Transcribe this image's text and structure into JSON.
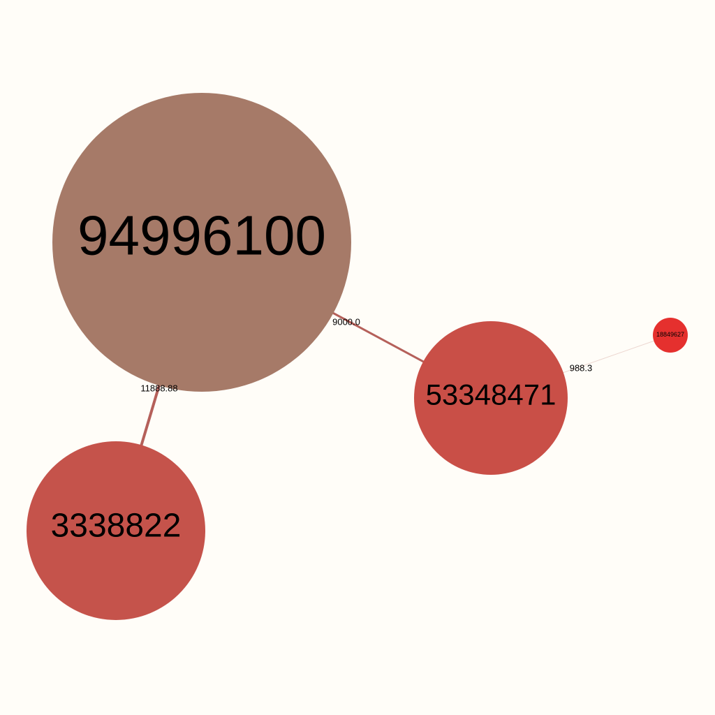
{
  "background_color": "#fffdf8",
  "nodes": [
    {
      "id": "n1",
      "label": "94996100",
      "color": "#a67a68"
    },
    {
      "id": "n2",
      "label": "53348471",
      "color": "#c94f47"
    },
    {
      "id": "n3",
      "label": "3338822",
      "color": "#c5534b"
    },
    {
      "id": "n4",
      "label": "18849627",
      "color": "#e5302e"
    }
  ],
  "edges": [
    {
      "from": "n1",
      "to": "n2",
      "label": "9000.0",
      "color": "#b5605a"
    },
    {
      "from": "n1",
      "to": "n3",
      "label": "11888.88",
      "color": "#b5605a"
    },
    {
      "from": "n2",
      "to": "n4",
      "label": "988.3",
      "color": "#ecd6cf"
    }
  ]
}
